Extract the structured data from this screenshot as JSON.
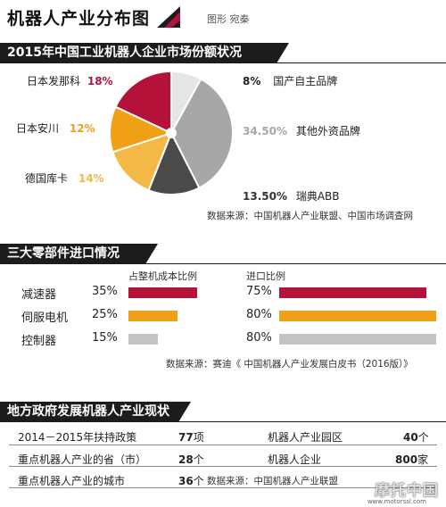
{
  "header": {
    "title": "机器人产业分布图",
    "byline": "图形 宛秦"
  },
  "sections": {
    "market": "2015年中国工业机器人企业市场份额状况",
    "components": "三大零部件进口情况",
    "government": "地方政府发展机器人产业现状"
  },
  "colors": {
    "red": "#b5123a",
    "orange": "#f0a015",
    "lightorange": "#f3b845",
    "gray": "#a7a7a7",
    "darkgray": "#4a4a4a",
    "lightgray": "#e6e6e6",
    "rowgray": "#c4c4c4"
  },
  "chart_data": [
    {
      "type": "pie",
      "title": "2015年中国工业机器人企业市场份额状况",
      "slices": [
        {
          "name": "国产自主品牌",
          "value": 8,
          "label": "8%",
          "color": "#e6e6e6"
        },
        {
          "name": "其他外资品牌",
          "value": 34.5,
          "label": "34.50%",
          "color": "#a7a7a7"
        },
        {
          "name": "瑞典ABB",
          "value": 13.5,
          "label": "13.50%",
          "color": "#4a4a4a"
        },
        {
          "name": "德国库卡",
          "value": 14,
          "label": "14%",
          "color": "#f3b845"
        },
        {
          "name": "日本安川",
          "value": 12,
          "label": "12%",
          "color": "#f0a015"
        },
        {
          "name": "日本发那科",
          "value": 18,
          "label": "18%",
          "color": "#b5123a"
        }
      ],
      "source": "数据来源：中国机器人产业联盟、中国市场调查网"
    },
    {
      "type": "bar",
      "title": "三大零部件进口情况",
      "categories": [
        "减速器",
        "伺服电机",
        "控制器"
      ],
      "series": [
        {
          "name": "占整机成本比例",
          "values": [
            35,
            25,
            15
          ],
          "labels": [
            "35%",
            "25%",
            "15%"
          ],
          "colors": [
            "#b5123a",
            "#f0a015",
            "#c4c4c4"
          ]
        },
        {
          "name": "进口比例",
          "values": [
            75,
            80,
            80
          ],
          "labels": [
            "75%",
            "80%",
            "80%"
          ],
          "colors": [
            "#b5123a",
            "#f0a015",
            "#c4c4c4"
          ]
        }
      ],
      "source": "数据来源：赛迪《 中国机器人产业发展白皮书（2016版）》"
    },
    {
      "type": "table",
      "title": "地方政府发展机器人产业现状",
      "rows": [
        {
          "left_label": "2014－2015年扶持政策",
          "left_num": "77",
          "left_unit": "项",
          "right_label": "机器人产业园区",
          "right_num": "40",
          "right_unit": "个"
        },
        {
          "left_label": "重点机器人产业的省（市）",
          "left_num": "28",
          "left_unit": "个",
          "right_label": "机器人企业",
          "right_num": "800",
          "right_unit": "家"
        },
        {
          "left_label": "重点机器人产业的城市",
          "left_num": "36",
          "left_unit": "个",
          "right_label": "数据来源：中国机器人产业联盟",
          "right_num": "",
          "right_unit": ""
        }
      ]
    }
  ],
  "watermark": {
    "text": "摩托中国",
    "url": "www.motorssl.com"
  }
}
